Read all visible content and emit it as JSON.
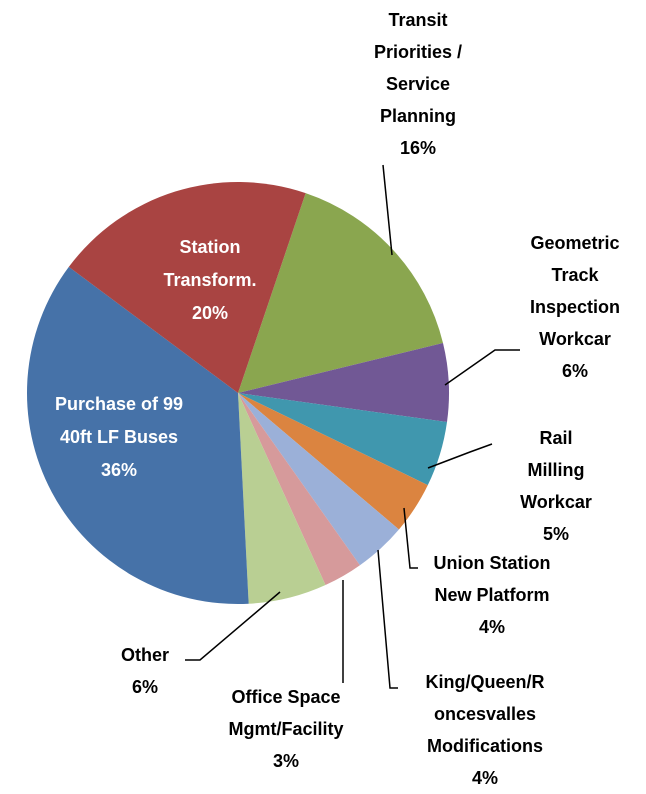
{
  "chart_data": {
    "type": "pie",
    "categories": [
      "Transit\nPriorities /\nService\nPlanning",
      "Geometric\nTrack\nInspection\nWorkcar",
      "Rail Milling\nWorkcar",
      "Union Station\nNew Platform",
      "King/Queen/R\noncesvalles\nModifications",
      "Office Space\nMgmt/Facility",
      "Other",
      "Purchase of 99\n40ft LF Buses",
      "Station\nTransform."
    ],
    "values": [
      16,
      6,
      5,
      4,
      4,
      3,
      6,
      36,
      20
    ],
    "value_labels": [
      "16%",
      "6%",
      "5%",
      "4%",
      "4%",
      "3%",
      "6%",
      "36%",
      "20%"
    ],
    "colors": [
      "#8aa64f",
      "#715895",
      "#4097ae",
      "#db8440",
      "#9bb0d8",
      "#d69a9b",
      "#b9cf93",
      "#4672a8",
      "#a94442"
    ]
  }
}
